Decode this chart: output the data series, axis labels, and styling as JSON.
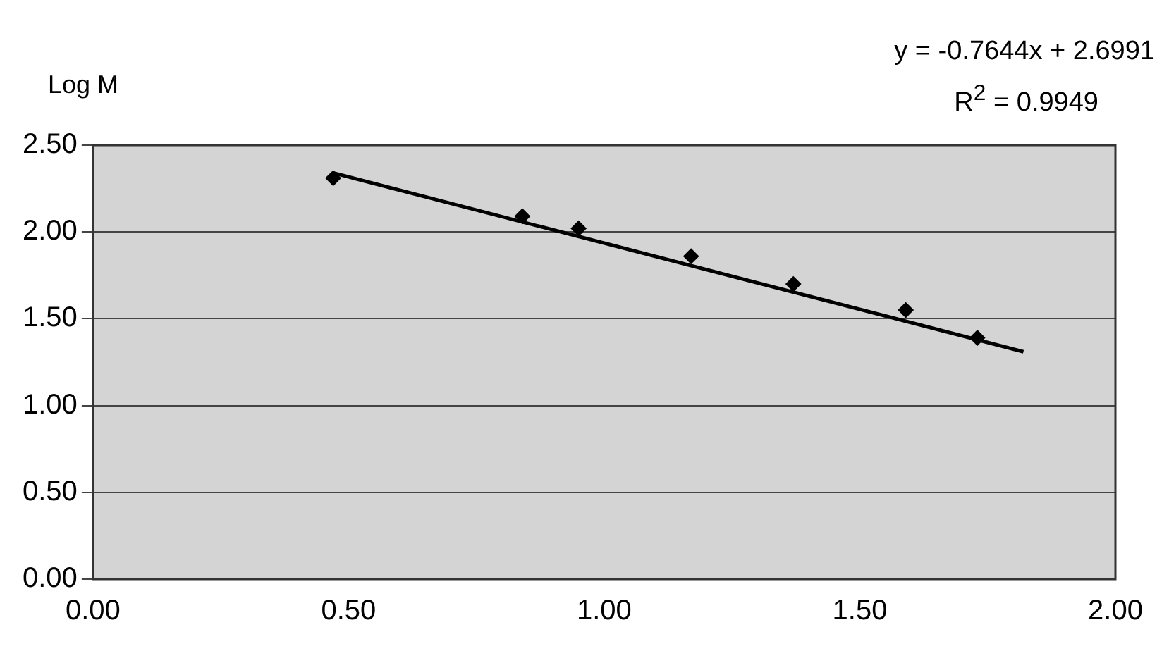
{
  "chart_data": {
    "type": "scatter",
    "ylabel": "Log M",
    "annotations": [
      "y = -0.7644x + 2.6991",
      "R$^{2}$ = 0.9949"
    ],
    "series": [
      {
        "color": "#000000",
        "marker": "diamond",
        "x": [
          0.47,
          0.84,
          0.95,
          1.17,
          1.37,
          1.59,
          1.73
        ],
        "values": [
          2.31,
          2.09,
          2.02,
          1.86,
          1.7,
          1.55,
          1.39
        ]
      },
      {
        "type": "line",
        "color": "#000000",
        "marker": "none",
        "x": [
          0.47,
          1.82
        ],
        "values": [
          2.34,
          1.31
        ]
      }
    ],
    "xlim": [
      0,
      2
    ],
    "xticks": [
      {
        "value": 0,
        "label": "0.00"
      },
      {
        "value": 0.5,
        "label": "0.50"
      },
      {
        "value": 1,
        "label": "1.00"
      },
      {
        "value": 1.5,
        "label": "1.50"
      },
      {
        "value": 2,
        "label": "2.00"
      }
    ],
    "ylim": [
      0,
      2.5
    ],
    "yticks": [
      {
        "value": 0,
        "label": "0.00"
      },
      {
        "value": 0.5,
        "label": "0.50"
      },
      {
        "value": 1,
        "label": "1.00"
      },
      {
        "value": 1.5,
        "label": "1.50"
      },
      {
        "value": 2,
        "label": "2.00"
      },
      {
        "value": 2.5,
        "label": "2.50"
      }
    ],
    "grid": "y",
    "legend": false
  }
}
